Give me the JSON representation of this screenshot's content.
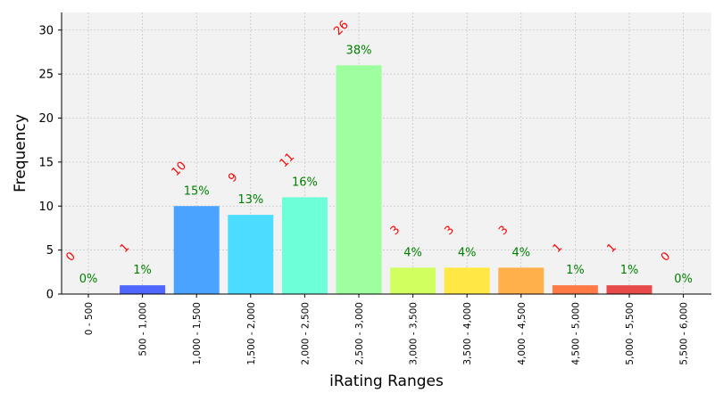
{
  "chart_data": {
    "type": "bar",
    "title": "",
    "xlabel": "iRating Ranges",
    "ylabel": "Frequency",
    "ylim": [
      0,
      32
    ],
    "yticks": [
      0,
      5,
      10,
      15,
      20,
      25,
      30
    ],
    "grid": true,
    "categories": [
      "0 - 500",
      "500 - 1,000",
      "1,000 - 1,500",
      "1,500 - 2,000",
      "2,000 - 2,500",
      "2,500 - 3,000",
      "3,000 - 3,500",
      "3,500 - 4,000",
      "4,000 - 4,500",
      "4,500 - 5,000",
      "5,000 - 5,500",
      "5,500 - 6,000"
    ],
    "values": [
      0,
      1,
      10,
      9,
      11,
      26,
      3,
      3,
      3,
      1,
      1,
      0
    ],
    "count_labels": [
      "0",
      "1",
      "10",
      "9",
      "11",
      "26",
      "3",
      "3",
      "3",
      "1",
      "1",
      "0"
    ],
    "percent_labels": [
      "0%",
      "1%",
      "15%",
      "13%",
      "16%",
      "38%",
      "4%",
      "4%",
      "4%",
      "1%",
      "1%",
      "0%"
    ],
    "colors": [
      "#2b2bff",
      "#4f67ff",
      "#4aa3ff",
      "#4cdcff",
      "#6dffd7",
      "#9dff9d",
      "#d2ff60",
      "#ffe844",
      "#ffb04a",
      "#ff7a45",
      "#e84a4a",
      "#b32222"
    ],
    "count_label_color": "#ff0000",
    "percent_label_color": "#008000",
    "plot_background": "#f2f2f2"
  }
}
